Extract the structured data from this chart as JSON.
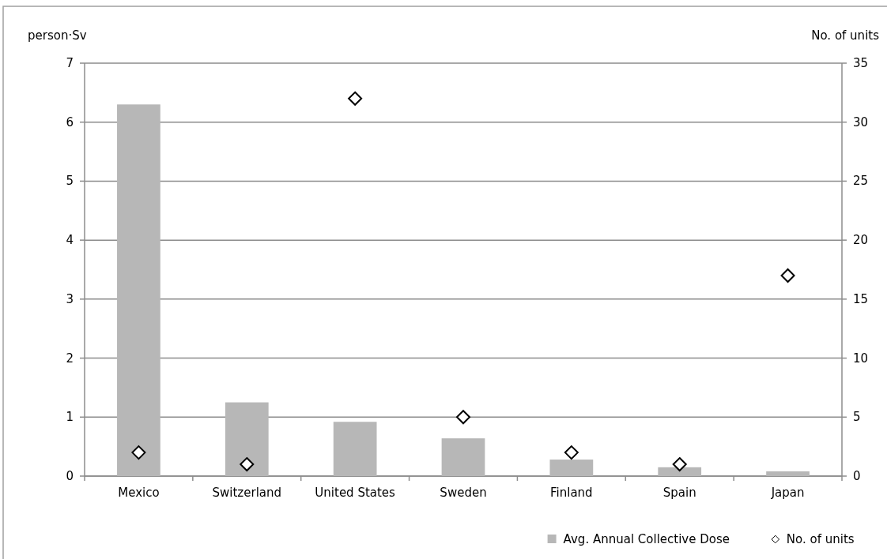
{
  "chart_data": {
    "type": "bar",
    "ylabel": "person·Sv",
    "y2label": "No. of units",
    "categories": [
      "Mexico",
      "Switzerland",
      "United States",
      "Sweden",
      "Finland",
      "Spain",
      "Japan"
    ],
    "series": [
      {
        "name": "Avg. Annual Collective Dose",
        "color": "#b7b7b7",
        "values": [
          6.3,
          1.25,
          0.92,
          0.64,
          0.28,
          0.15,
          0.08
        ]
      },
      {
        "name": "No. of units",
        "type": "scatter",
        "axis": "y2",
        "color": "#000000",
        "marker": "diamond",
        "values": [
          2,
          1,
          32,
          5,
          2,
          1,
          17
        ]
      }
    ],
    "ylim": [
      0,
      7
    ],
    "yticks": [
      0,
      1,
      2,
      3,
      4,
      5,
      6,
      7
    ],
    "y2lim": [
      0,
      35
    ],
    "y2ticks": [
      0,
      5,
      10,
      15,
      20,
      25,
      30,
      35
    ],
    "grid": "y",
    "legend": "bottom right"
  }
}
